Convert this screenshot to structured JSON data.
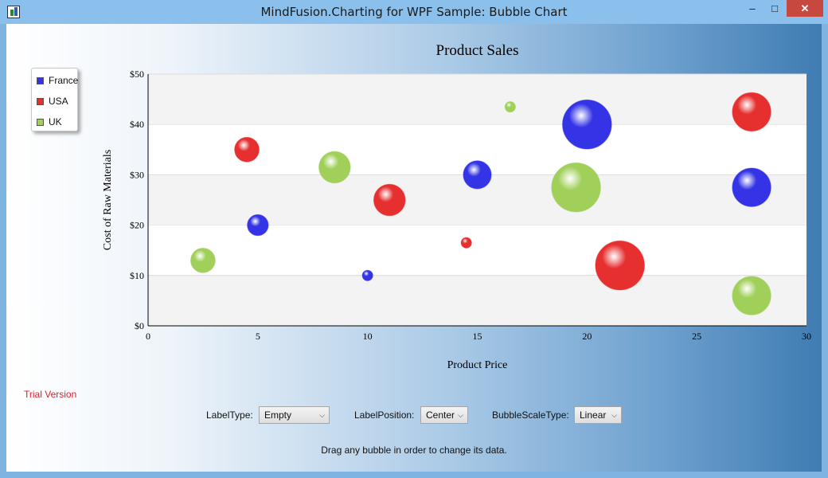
{
  "window": {
    "title": "MindFusion.Charting for WPF Sample: Bubble Chart",
    "minimize_glyph": "–",
    "maximize_glyph": "□",
    "close_glyph": "✕"
  },
  "chart_data": {
    "type": "scatter",
    "subtype": "bubble",
    "title": "Product Sales",
    "xlabel": "Product Price",
    "ylabel": "Cost of Raw Materials",
    "xlim": [
      0,
      30
    ],
    "ylim": [
      0,
      50
    ],
    "x_ticks": [
      "0",
      "5",
      "10",
      "15",
      "20",
      "25",
      "30"
    ],
    "y_ticks": [
      "$0",
      "$10",
      "$20",
      "$30",
      "$40",
      "$50"
    ],
    "grid": "horizontal bands",
    "legend_position": "top-left",
    "series": [
      {
        "name": "France",
        "color": "#3434e6",
        "points": [
          [
            5,
            20,
            3
          ],
          [
            10,
            10,
            1.5
          ],
          [
            15,
            30,
            4
          ],
          [
            20,
            40,
            7
          ],
          [
            27.5,
            27.5,
            5.5
          ]
        ]
      },
      {
        "name": "USA",
        "color": "#e63030",
        "points": [
          [
            4.5,
            35,
            3.5
          ],
          [
            11,
            25,
            4.5
          ],
          [
            14.5,
            16.5,
            1.5
          ],
          [
            21.5,
            12,
            7
          ],
          [
            27.5,
            42.5,
            5.5
          ]
        ]
      },
      {
        "name": "UK",
        "color": "#a0d05a",
        "points": [
          [
            2.5,
            13,
            3.5
          ],
          [
            8.5,
            31.5,
            4.5
          ],
          [
            16.5,
            43.5,
            1.5
          ],
          [
            19.5,
            27.5,
            7
          ],
          [
            27.5,
            6,
            5.5
          ]
        ]
      }
    ]
  },
  "trial_text": "Trial Version",
  "controls": {
    "label_type": {
      "label": "LabelType:",
      "value": "Empty"
    },
    "label_position": {
      "label": "LabelPosition:",
      "value": "Center"
    },
    "bubble_scale_type": {
      "label": "BubbleScaleType:",
      "value": "Linear"
    }
  },
  "hint": "Drag any bubble in order to change its data."
}
